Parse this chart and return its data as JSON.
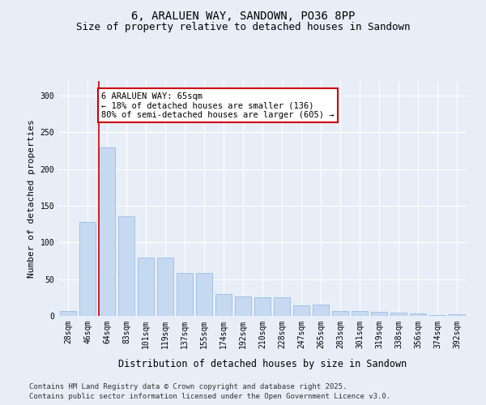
{
  "title": "6, ARALUEN WAY, SANDOWN, PO36 8PP",
  "subtitle": "Size of property relative to detached houses in Sandown",
  "xlabel": "Distribution of detached houses by size in Sandown",
  "ylabel": "Number of detached properties",
  "categories": [
    "28sqm",
    "46sqm",
    "64sqm",
    "83sqm",
    "101sqm",
    "119sqm",
    "137sqm",
    "155sqm",
    "174sqm",
    "192sqm",
    "210sqm",
    "228sqm",
    "247sqm",
    "265sqm",
    "283sqm",
    "301sqm",
    "319sqm",
    "338sqm",
    "356sqm",
    "374sqm",
    "392sqm"
  ],
  "values": [
    7,
    128,
    230,
    136,
    80,
    80,
    59,
    59,
    30,
    26,
    25,
    25,
    14,
    15,
    7,
    7,
    6,
    4,
    3,
    1,
    2
  ],
  "bar_color": "#c5d9f1",
  "bar_edgecolor": "#8db4e2",
  "marker_line_color": "#cc0000",
  "annotation_text": "6 ARALUEN WAY: 65sqm\n← 18% of detached houses are smaller (136)\n80% of semi-detached houses are larger (605) →",
  "annotation_box_color": "#ffffff",
  "annotation_box_edgecolor": "#cc0000",
  "ylim": [
    0,
    320
  ],
  "yticks": [
    0,
    50,
    100,
    150,
    200,
    250,
    300
  ],
  "footnote1": "Contains HM Land Registry data © Crown copyright and database right 2025.",
  "footnote2": "Contains public sector information licensed under the Open Government Licence v3.0.",
  "bg_color": "#e8eef8",
  "plot_bg_color": "#e8eef8",
  "title_fontsize": 10,
  "subtitle_fontsize": 9,
  "axis_label_fontsize": 8,
  "tick_fontsize": 7,
  "annotation_fontsize": 7.5,
  "footnote_fontsize": 6.5
}
